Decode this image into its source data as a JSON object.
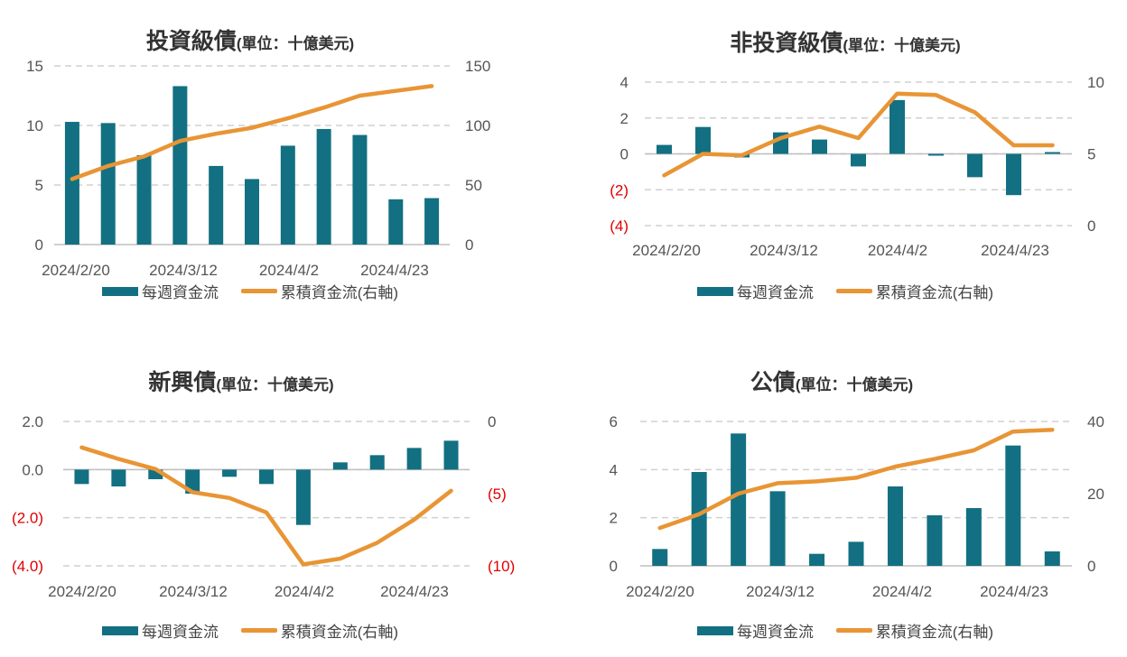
{
  "colors": {
    "bar": "#127082",
    "line": "#E89535",
    "grid": "#d0d0d0",
    "axis_text": "#555555",
    "negative_text": "#e00000"
  },
  "legend": {
    "bar_label": "每週資金流",
    "line_label": "累積資金流(右軸)"
  },
  "chart_data": [
    {
      "id": "ig",
      "type": "bar",
      "title": "投資級債",
      "unit": "(單位：十億美元)",
      "x_ticks": [
        "2024/2/20",
        "2024/3/12",
        "2024/4/2",
        "2024/4/23"
      ],
      "y_left": {
        "ticks": [
          "15",
          "10",
          "5",
          "0"
        ],
        "ylim": [
          0,
          15
        ]
      },
      "y_right": {
        "ticks": [
          "150",
          "100",
          "50",
          "0"
        ],
        "ylim": [
          0,
          150
        ]
      },
      "series": [
        {
          "name": "每週資金流",
          "type": "bar",
          "axis": "left",
          "values": [
            10.3,
            10.2,
            7.5,
            13.3,
            6.6,
            5.5,
            8.3,
            9.7,
            9.2,
            3.8,
            3.9
          ]
        },
        {
          "name": "累積資金流(右軸)",
          "type": "line",
          "axis": "right",
          "values": [
            55,
            66,
            74,
            87,
            93,
            98,
            106,
            115,
            125,
            129,
            133
          ]
        }
      ]
    },
    {
      "id": "hy",
      "type": "bar",
      "title": "非投資級債",
      "unit": "(單位：十億美元)",
      "x_ticks": [
        "2024/2/20",
        "2024/3/12",
        "2024/4/2",
        "2024/4/23"
      ],
      "y_left": {
        "ticks": [
          "4",
          "2",
          "0",
          "(2)",
          "(4)"
        ],
        "ylim": [
          -4,
          4
        ]
      },
      "y_right": {
        "ticks": [
          "10",
          "5",
          "0"
        ],
        "ylim": [
          0,
          10
        ]
      },
      "series": [
        {
          "name": "每週資金流",
          "type": "bar",
          "axis": "left",
          "values": [
            0.5,
            1.5,
            -0.2,
            1.2,
            0.8,
            -0.7,
            3.0,
            -0.1,
            -1.3,
            -2.3,
            0.1
          ]
        },
        {
          "name": "累積資金流(右軸)",
          "type": "line",
          "axis": "right",
          "values": [
            3.5,
            5.0,
            4.9,
            6.1,
            6.9,
            6.1,
            9.2,
            9.1,
            7.9,
            5.6,
            5.6
          ]
        }
      ]
    },
    {
      "id": "em",
      "type": "bar",
      "title": "新興債",
      "unit": "(單位：十億美元)",
      "x_ticks": [
        "2024/2/20",
        "2024/3/12",
        "2024/4/2",
        "2024/4/23"
      ],
      "y_left": {
        "ticks": [
          "2.0",
          "0.0",
          "(2.0)",
          "(4.0)"
        ],
        "ylim": [
          -4,
          2
        ]
      },
      "y_right": {
        "ticks": [
          "0",
          "(5)",
          "(10)"
        ],
        "ylim": [
          -10,
          0
        ]
      },
      "series": [
        {
          "name": "每週資金流",
          "type": "bar",
          "axis": "left",
          "values": [
            -0.6,
            -0.7,
            -0.4,
            -1.0,
            -0.3,
            -0.6,
            -2.3,
            0.3,
            0.6,
            0.9,
            1.2
          ]
        },
        {
          "name": "累積資金流(右軸)",
          "type": "line",
          "axis": "right",
          "values": [
            -1.8,
            -2.6,
            -3.3,
            -4.9,
            -5.3,
            -6.3,
            -9.9,
            -9.5,
            -8.4,
            -6.8,
            -4.8
          ]
        }
      ]
    },
    {
      "id": "gov",
      "type": "bar",
      "title": "公債",
      "unit": "(單位：十億美元)",
      "x_ticks": [
        "2024/2/20",
        "2024/3/12",
        "2024/4/2",
        "2024/4/23"
      ],
      "y_left": {
        "ticks": [
          "6",
          "4",
          "2",
          "0"
        ],
        "ylim": [
          0,
          6
        ]
      },
      "y_right": {
        "ticks": [
          "40",
          "20",
          "0"
        ],
        "ylim": [
          0,
          40
        ]
      },
      "series": [
        {
          "name": "每週資金流",
          "type": "bar",
          "axis": "left",
          "values": [
            0.7,
            3.9,
            5.5,
            3.1,
            0.5,
            1.0,
            3.3,
            2.1,
            2.4,
            5.0,
            0.6
          ]
        },
        {
          "name": "累積資金流(右軸)",
          "type": "line",
          "axis": "right",
          "values": [
            10.5,
            14.3,
            20.0,
            22.9,
            23.4,
            24.4,
            27.5,
            29.6,
            32.0,
            37.2,
            37.7
          ]
        }
      ]
    }
  ]
}
